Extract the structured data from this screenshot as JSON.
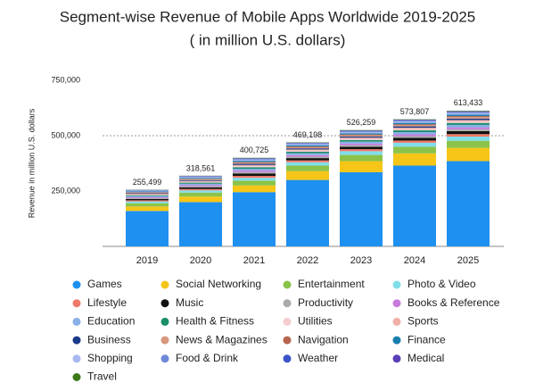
{
  "chart_data": {
    "type": "stacked-bar",
    "title": "Segment-wise Revenue of Mobile Apps Worldwide 2019-2025",
    "subtitle": "( in million U.S. dollars)",
    "y_label": "Revenue in million U.S. dollars",
    "categories": [
      "2019",
      "2020",
      "2021",
      "2022",
      "2023",
      "2024",
      "2025"
    ],
    "ylim": [
      0,
      750000
    ],
    "yticks": [
      {
        "value": 250000,
        "label": "250,000"
      },
      {
        "value": 500000,
        "label": "500,000"
      },
      {
        "value": 750000,
        "label": "750,000"
      }
    ],
    "grid_values": [
      500000
    ],
    "totals": [
      255499,
      318561,
      400725,
      469198,
      526259,
      573807,
      613433
    ],
    "total_labels": [
      "255,499",
      "318,561",
      "400,725",
      "469,198",
      "526,259",
      "573,807",
      "613,433"
    ],
    "series": [
      {
        "name": "Games",
        "color": "#1e90ef",
        "values": [
          160000,
          200000,
          245000,
          300000,
          335000,
          365000,
          385000
        ]
      },
      {
        "name": "Social Networking",
        "color": "#f5c518",
        "values": [
          20000,
          25000,
          30000,
          40000,
          50000,
          55000,
          60000
        ]
      },
      {
        "name": "Entertainment",
        "color": "#8bc34a",
        "values": [
          15000,
          18000,
          22000,
          25000,
          28000,
          30000,
          32000
        ]
      },
      {
        "name": "Photo & Video",
        "color": "#80deea",
        "values": [
          8000,
          10000,
          13000,
          15000,
          17000,
          18000,
          19000
        ]
      },
      {
        "name": "Lifestyle",
        "color": "#f07a6a",
        "values": [
          5000,
          6250,
          8500,
          8500,
          9000,
          10000,
          11000
        ]
      },
      {
        "name": "Music",
        "color": "#111111",
        "values": [
          6000,
          7500,
          10200,
          10200,
          10800,
          12000,
          13200
        ]
      },
      {
        "name": "Productivity",
        "color": "#aaaaaa",
        "values": [
          4000,
          5000,
          6800,
          6800,
          7200,
          8000,
          8800
        ]
      },
      {
        "name": "Books & Reference",
        "color": "#c77ddb",
        "values": [
          4000,
          5000,
          6800,
          6800,
          7200,
          8000,
          8800
        ]
      },
      {
        "name": "Education",
        "color": "#8ab0e8",
        "values": [
          5000,
          6250,
          8500,
          8500,
          9000,
          10000,
          11000
        ]
      },
      {
        "name": "Health & Fitness",
        "color": "#1a8f6a",
        "values": [
          4000,
          5000,
          6800,
          6800,
          7200,
          8000,
          8800
        ]
      },
      {
        "name": "Utilities",
        "color": "#f5cdd0",
        "values": [
          3000,
          3750,
          5100,
          5100,
          5400,
          6000,
          6600
        ]
      },
      {
        "name": "Sports",
        "color": "#f0b0a8",
        "values": [
          3000,
          3750,
          5100,
          5100,
          5400,
          6000,
          6600
        ]
      },
      {
        "name": "Business",
        "color": "#1a3a8a",
        "values": [
          3000,
          3750,
          5100,
          5100,
          5400,
          6000,
          6600
        ]
      },
      {
        "name": "News & Magazines",
        "color": "#d9987e",
        "values": [
          3000,
          3750,
          5100,
          5100,
          5400,
          6000,
          6600
        ]
      },
      {
        "name": "Navigation",
        "color": "#b5654f",
        "values": [
          2000,
          2500,
          3400,
          3400,
          3600,
          4000,
          4400
        ]
      },
      {
        "name": "Finance",
        "color": "#1a7fb0",
        "values": [
          3000,
          3750,
          5100,
          5100,
          5400,
          6000,
          6600
        ]
      },
      {
        "name": "Shopping",
        "color": "#a9b8f0",
        "values": [
          3000,
          3750,
          5100,
          5100,
          5400,
          6000,
          6600
        ]
      },
      {
        "name": "Food & Drink",
        "color": "#6f88d8",
        "values": [
          2000,
          2500,
          3400,
          3400,
          3600,
          4000,
          4400
        ]
      },
      {
        "name": "Weather",
        "color": "#3b55c8",
        "values": [
          1000,
          1250,
          1700,
          1700,
          1800,
          2000,
          2200
        ]
      },
      {
        "name": "Medical",
        "color": "#5a3fb8",
        "values": [
          1000,
          1250,
          1700,
          1700,
          1800,
          2000,
          2200
        ]
      },
      {
        "name": "Travel",
        "color": "#3d7a1a",
        "values": [
          1000,
          1250,
          1700,
          1700,
          1800,
          2000,
          2200
        ]
      }
    ]
  }
}
